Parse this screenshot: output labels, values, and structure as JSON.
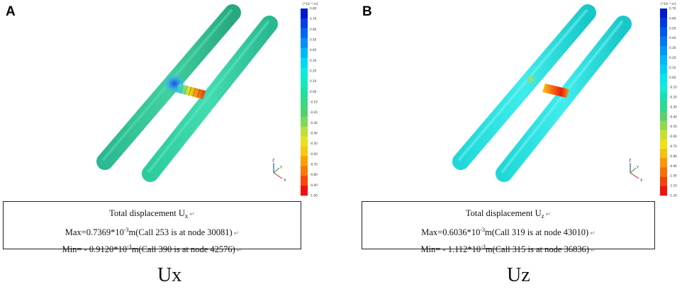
{
  "panels": [
    {
      "id": "A",
      "letter": "A",
      "title_prefix": "Total displacement U",
      "title_sub": "x",
      "max_prefix": "Max=0.7369*10",
      "max_exp": "-3",
      "max_suffix": "m(Call 253 is at node 30081)",
      "min_prefix": "Min= - 0.9120*10",
      "min_exp": "-3",
      "min_suffix": "m(Call 390 is at node 42576)",
      "return_mark": "↵",
      "label": "Ux",
      "unit": "[*10⁻³ m]",
      "scale_labels": [
        "0.80",
        "0.70",
        "0.60",
        "0.50",
        "0.40",
        "0.30",
        "0.20",
        "0.10",
        "0.00",
        "-0.10",
        "-0.20",
        "-0.30",
        "-0.40",
        "-0.50",
        "-0.60",
        "-0.70",
        "-0.80",
        "-0.90",
        "-1.00"
      ],
      "scale_colors": [
        "#0018d0",
        "#0040e8",
        "#0068f0",
        "#0090f6",
        "#00b8f8",
        "#00d8f4",
        "#10e8e0",
        "#18e8c0",
        "#20e0a0",
        "#38d888",
        "#50d070",
        "#80d858",
        "#b8e040",
        "#e8e020",
        "#f8c810",
        "#f8a008",
        "#f87808",
        "#f84808",
        "#f01010"
      ],
      "axes": {
        "z": "Z",
        "y": "Y",
        "x": "X"
      }
    },
    {
      "id": "B",
      "letter": "B",
      "title_prefix": "Total displacement U",
      "title_sub": "z",
      "max_prefix": "Max=0.6036*10",
      "max_exp": "-3",
      "max_suffix": "m(Call 319 is at node 43010)",
      "min_prefix": "Min= - 1.112*10",
      "min_exp": "-3",
      "min_suffix": "m(Call 315 is at node 36836)",
      "return_mark": "↵",
      "label": "Uz",
      "unit": "[*10⁻³ m]",
      "scale_labels": [
        "0.70",
        "0.60",
        "0.50",
        "0.40",
        "0.30",
        "0.20",
        "0.10",
        "0.00",
        "-0.10",
        "-0.20",
        "-0.30",
        "-0.40",
        "-0.50",
        "-0.60",
        "-0.70",
        "-0.80",
        "-0.90",
        "-1.00",
        "-1.10",
        "-1.20"
      ],
      "scale_colors": [
        "#0018d0",
        "#0038e0",
        "#0058ec",
        "#0078f2",
        "#0098f6",
        "#00b8f8",
        "#00d0f6",
        "#08e4ee",
        "#10ecd8",
        "#18e0b0",
        "#30d890",
        "#58d070",
        "#90d850",
        "#c8e030",
        "#f0e018",
        "#f8c010",
        "#f89808",
        "#f87008",
        "#f84008",
        "#f01010"
      ],
      "axes": {
        "z": "Z",
        "y": "Y",
        "x": "X"
      }
    }
  ]
}
